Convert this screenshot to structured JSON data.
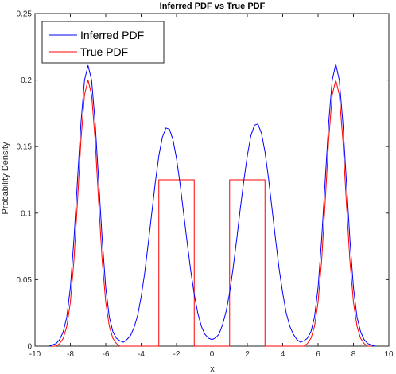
{
  "chart_data": {
    "type": "line",
    "title": "Inferred PDF vs True PDF",
    "xlabel": "x",
    "ylabel": "Probability Density",
    "xlim": [
      -10,
      10
    ],
    "ylim": [
      0,
      0.25
    ],
    "xticks": [
      -10,
      -8,
      -6,
      -4,
      -2,
      0,
      2,
      4,
      6,
      8,
      10
    ],
    "yticks": [
      0,
      0.05,
      0.1,
      0.15,
      0.2,
      0.25
    ],
    "xtick_labels": [
      "-10",
      "-8",
      "-6",
      "-4",
      "-2",
      "0",
      "2",
      "4",
      "6",
      "8",
      "10"
    ],
    "ytick_labels": [
      "0",
      "0.05",
      "0.1",
      "0.15",
      "0.2",
      "0.25"
    ],
    "grid": false,
    "legend": {
      "position": "top-left",
      "entries": [
        "Inferred PDF",
        "True PDF"
      ]
    },
    "series": [
      {
        "name": "Inferred PDF",
        "color": "#0000ff",
        "x": [
          -9.2,
          -9.0,
          -8.8,
          -8.6,
          -8.4,
          -8.2,
          -8.0,
          -7.8,
          -7.6,
          -7.4,
          -7.2,
          -7.0,
          -6.8,
          -6.6,
          -6.4,
          -6.2,
          -6.0,
          -5.8,
          -5.6,
          -5.4,
          -5.2,
          -5.0,
          -4.8,
          -4.6,
          -4.4,
          -4.2,
          -4.0,
          -3.8,
          -3.6,
          -3.4,
          -3.2,
          -3.0,
          -2.8,
          -2.6,
          -2.4,
          -2.2,
          -2.0,
          -1.8,
          -1.6,
          -1.4,
          -1.2,
          -1.0,
          -0.8,
          -0.6,
          -0.4,
          -0.2,
          0.0,
          0.2,
          0.4,
          0.6,
          0.8,
          1.0,
          1.2,
          1.4,
          1.6,
          1.8,
          2.0,
          2.2,
          2.4,
          2.6,
          2.8,
          3.0,
          3.2,
          3.4,
          3.6,
          3.8,
          4.0,
          4.2,
          4.4,
          4.6,
          4.8,
          5.0,
          5.2,
          5.4,
          5.6,
          5.8,
          6.0,
          6.2,
          6.4,
          6.6,
          6.8,
          7.0,
          7.2,
          7.4,
          7.6,
          7.8,
          8.0,
          8.2,
          8.4,
          8.6,
          8.8,
          9.0,
          9.2
        ],
        "y": [
          0.0,
          0.001,
          0.002,
          0.005,
          0.011,
          0.022,
          0.044,
          0.08,
          0.124,
          0.168,
          0.2,
          0.211,
          0.2,
          0.168,
          0.124,
          0.08,
          0.044,
          0.022,
          0.011,
          0.006,
          0.004,
          0.003,
          0.005,
          0.008,
          0.014,
          0.023,
          0.037,
          0.055,
          0.077,
          0.1,
          0.123,
          0.143,
          0.157,
          0.164,
          0.163,
          0.155,
          0.141,
          0.122,
          0.1,
          0.078,
          0.057,
          0.039,
          0.025,
          0.015,
          0.009,
          0.006,
          0.005,
          0.006,
          0.009,
          0.016,
          0.026,
          0.04,
          0.059,
          0.08,
          0.103,
          0.124,
          0.143,
          0.158,
          0.166,
          0.167,
          0.16,
          0.146,
          0.126,
          0.103,
          0.08,
          0.058,
          0.04,
          0.025,
          0.015,
          0.009,
          0.005,
          0.003,
          0.004,
          0.006,
          0.011,
          0.022,
          0.044,
          0.08,
          0.124,
          0.168,
          0.2,
          0.212,
          0.2,
          0.168,
          0.124,
          0.08,
          0.044,
          0.022,
          0.011,
          0.005,
          0.002,
          0.001,
          0.0
        ]
      },
      {
        "name": "True PDF",
        "color": "#ff0000",
        "x": [
          -9.0,
          -8.8,
          -8.6,
          -8.4,
          -8.2,
          -8.0,
          -7.8,
          -7.6,
          -7.4,
          -7.2,
          -7.0,
          -6.8,
          -6.6,
          -6.4,
          -6.2,
          -6.0,
          -5.8,
          -5.6,
          -5.4,
          -5.2,
          -5.0,
          -3.0,
          -3.0,
          -1.0,
          -1.0,
          1.0,
          1.0,
          3.0,
          3.0,
          5.0,
          5.2,
          5.4,
          5.6,
          5.8,
          6.0,
          6.2,
          6.4,
          6.6,
          6.8,
          7.0,
          7.2,
          7.4,
          7.6,
          7.8,
          8.0,
          8.2,
          8.4,
          8.6,
          8.8,
          9.0
        ],
        "y": [
          0.0,
          0.0,
          0.002,
          0.006,
          0.015,
          0.033,
          0.064,
          0.108,
          0.155,
          0.189,
          0.2,
          0.189,
          0.155,
          0.108,
          0.064,
          0.033,
          0.015,
          0.006,
          0.002,
          0.0,
          0.0,
          0.0,
          0.125,
          0.125,
          0.0,
          0.0,
          0.125,
          0.125,
          0.0,
          0.0,
          0.0,
          0.002,
          0.006,
          0.015,
          0.033,
          0.064,
          0.108,
          0.155,
          0.189,
          0.2,
          0.189,
          0.155,
          0.108,
          0.064,
          0.033,
          0.015,
          0.006,
          0.002,
          0.0,
          0.0
        ]
      }
    ]
  }
}
